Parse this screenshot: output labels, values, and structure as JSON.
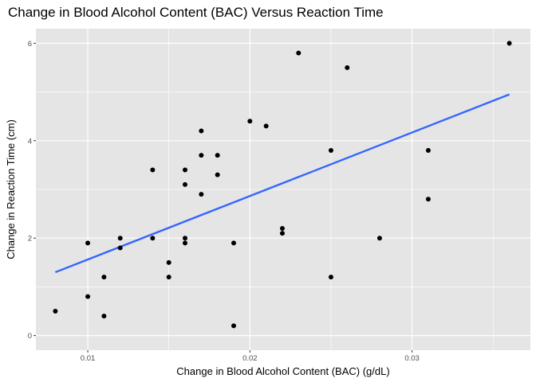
{
  "chart_data": {
    "type": "scatter",
    "title": "Change in Blood Alcohol Content (BAC) Versus Reaction Time",
    "xlabel": "Change in Blood Alcohol Content (BAC) (g/dL)",
    "ylabel": "Change in Reaction Time (cm)",
    "xlim": [
      0.0068,
      0.0373
    ],
    "ylim": [
      -0.3,
      6.3
    ],
    "x_ticks": [
      0.01,
      0.02,
      0.03
    ],
    "x_tick_labels": [
      "0.01",
      "0.02",
      "0.03"
    ],
    "y_ticks": [
      0,
      2,
      4,
      6
    ],
    "y_tick_labels": [
      "0",
      "2",
      "4",
      "6"
    ],
    "grid": true,
    "panel_color": "#e5e5e5",
    "grid_color": "#ffffff",
    "point_color": "#000000",
    "trend_line": {
      "type": "linear",
      "color": "#3366ff",
      "x": [
        0.008,
        0.036
      ],
      "y": [
        1.3,
        4.95
      ]
    },
    "points": [
      {
        "x": 0.008,
        "y": 0.5
      },
      {
        "x": 0.01,
        "y": 1.9
      },
      {
        "x": 0.01,
        "y": 0.8
      },
      {
        "x": 0.011,
        "y": 1.2
      },
      {
        "x": 0.011,
        "y": 0.4
      },
      {
        "x": 0.012,
        "y": 2.0
      },
      {
        "x": 0.012,
        "y": 1.8
      },
      {
        "x": 0.014,
        "y": 3.4
      },
      {
        "x": 0.014,
        "y": 2.0
      },
      {
        "x": 0.015,
        "y": 1.5
      },
      {
        "x": 0.015,
        "y": 1.2
      },
      {
        "x": 0.016,
        "y": 3.4
      },
      {
        "x": 0.016,
        "y": 3.1
      },
      {
        "x": 0.016,
        "y": 2.0
      },
      {
        "x": 0.016,
        "y": 1.9
      },
      {
        "x": 0.017,
        "y": 4.2
      },
      {
        "x": 0.017,
        "y": 3.7
      },
      {
        "x": 0.017,
        "y": 2.9
      },
      {
        "x": 0.018,
        "y": 3.7
      },
      {
        "x": 0.018,
        "y": 3.3
      },
      {
        "x": 0.019,
        "y": 1.9
      },
      {
        "x": 0.019,
        "y": 0.2
      },
      {
        "x": 0.02,
        "y": 4.4
      },
      {
        "x": 0.021,
        "y": 4.3
      },
      {
        "x": 0.022,
        "y": 2.2
      },
      {
        "x": 0.022,
        "y": 2.1
      },
      {
        "x": 0.023,
        "y": 5.8
      },
      {
        "x": 0.025,
        "y": 3.8
      },
      {
        "x": 0.025,
        "y": 1.2
      },
      {
        "x": 0.026,
        "y": 5.5
      },
      {
        "x": 0.028,
        "y": 2.0
      },
      {
        "x": 0.031,
        "y": 3.8
      },
      {
        "x": 0.031,
        "y": 2.8
      },
      {
        "x": 0.036,
        "y": 6.0
      }
    ]
  }
}
